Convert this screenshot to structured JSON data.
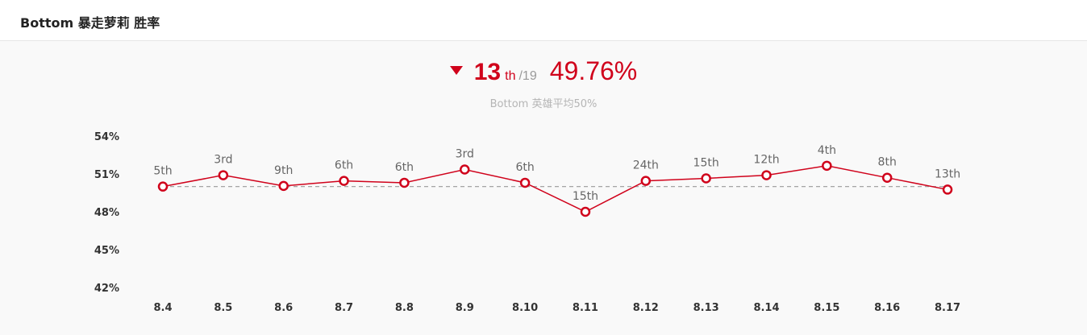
{
  "header": {
    "title": "Bottom 暴走萝莉 胜率"
  },
  "summary": {
    "rank": "13",
    "rank_suffix": "th",
    "rank_total": "/19",
    "win_rate": "49.76%",
    "trend": "down",
    "subtitle": "Bottom 英雄平均50%"
  },
  "colors": {
    "accent": "#d0021b",
    "reference_line": "#999999"
  },
  "chart_data": {
    "type": "line",
    "title": "",
    "xlabel": "",
    "ylabel": "",
    "categories": [
      "8.4",
      "8.5",
      "8.6",
      "8.7",
      "8.8",
      "8.9",
      "8.10",
      "8.11",
      "8.12",
      "8.13",
      "8.14",
      "8.15",
      "8.16",
      "8.17"
    ],
    "series": [
      {
        "values": [
          50.0,
          50.9,
          50.05,
          50.45,
          50.3,
          51.35,
          50.3,
          48.0,
          50.45,
          50.65,
          50.9,
          51.65,
          50.7,
          49.76
        ],
        "labels": [
          "5th",
          "3rd",
          "9th",
          "6th",
          "6th",
          "3rd",
          "6th",
          "15th",
          "24th",
          "15th",
          "12th",
          "4th",
          "8th",
          "13th"
        ]
      }
    ],
    "reference_line": 50,
    "yticks": [
      "54%",
      "51%",
      "48%",
      "45%",
      "42%"
    ],
    "ytick_values": [
      54,
      51,
      48,
      45,
      42
    ],
    "ylim": [
      42,
      54
    ],
    "grid": false,
    "legend": "none"
  }
}
